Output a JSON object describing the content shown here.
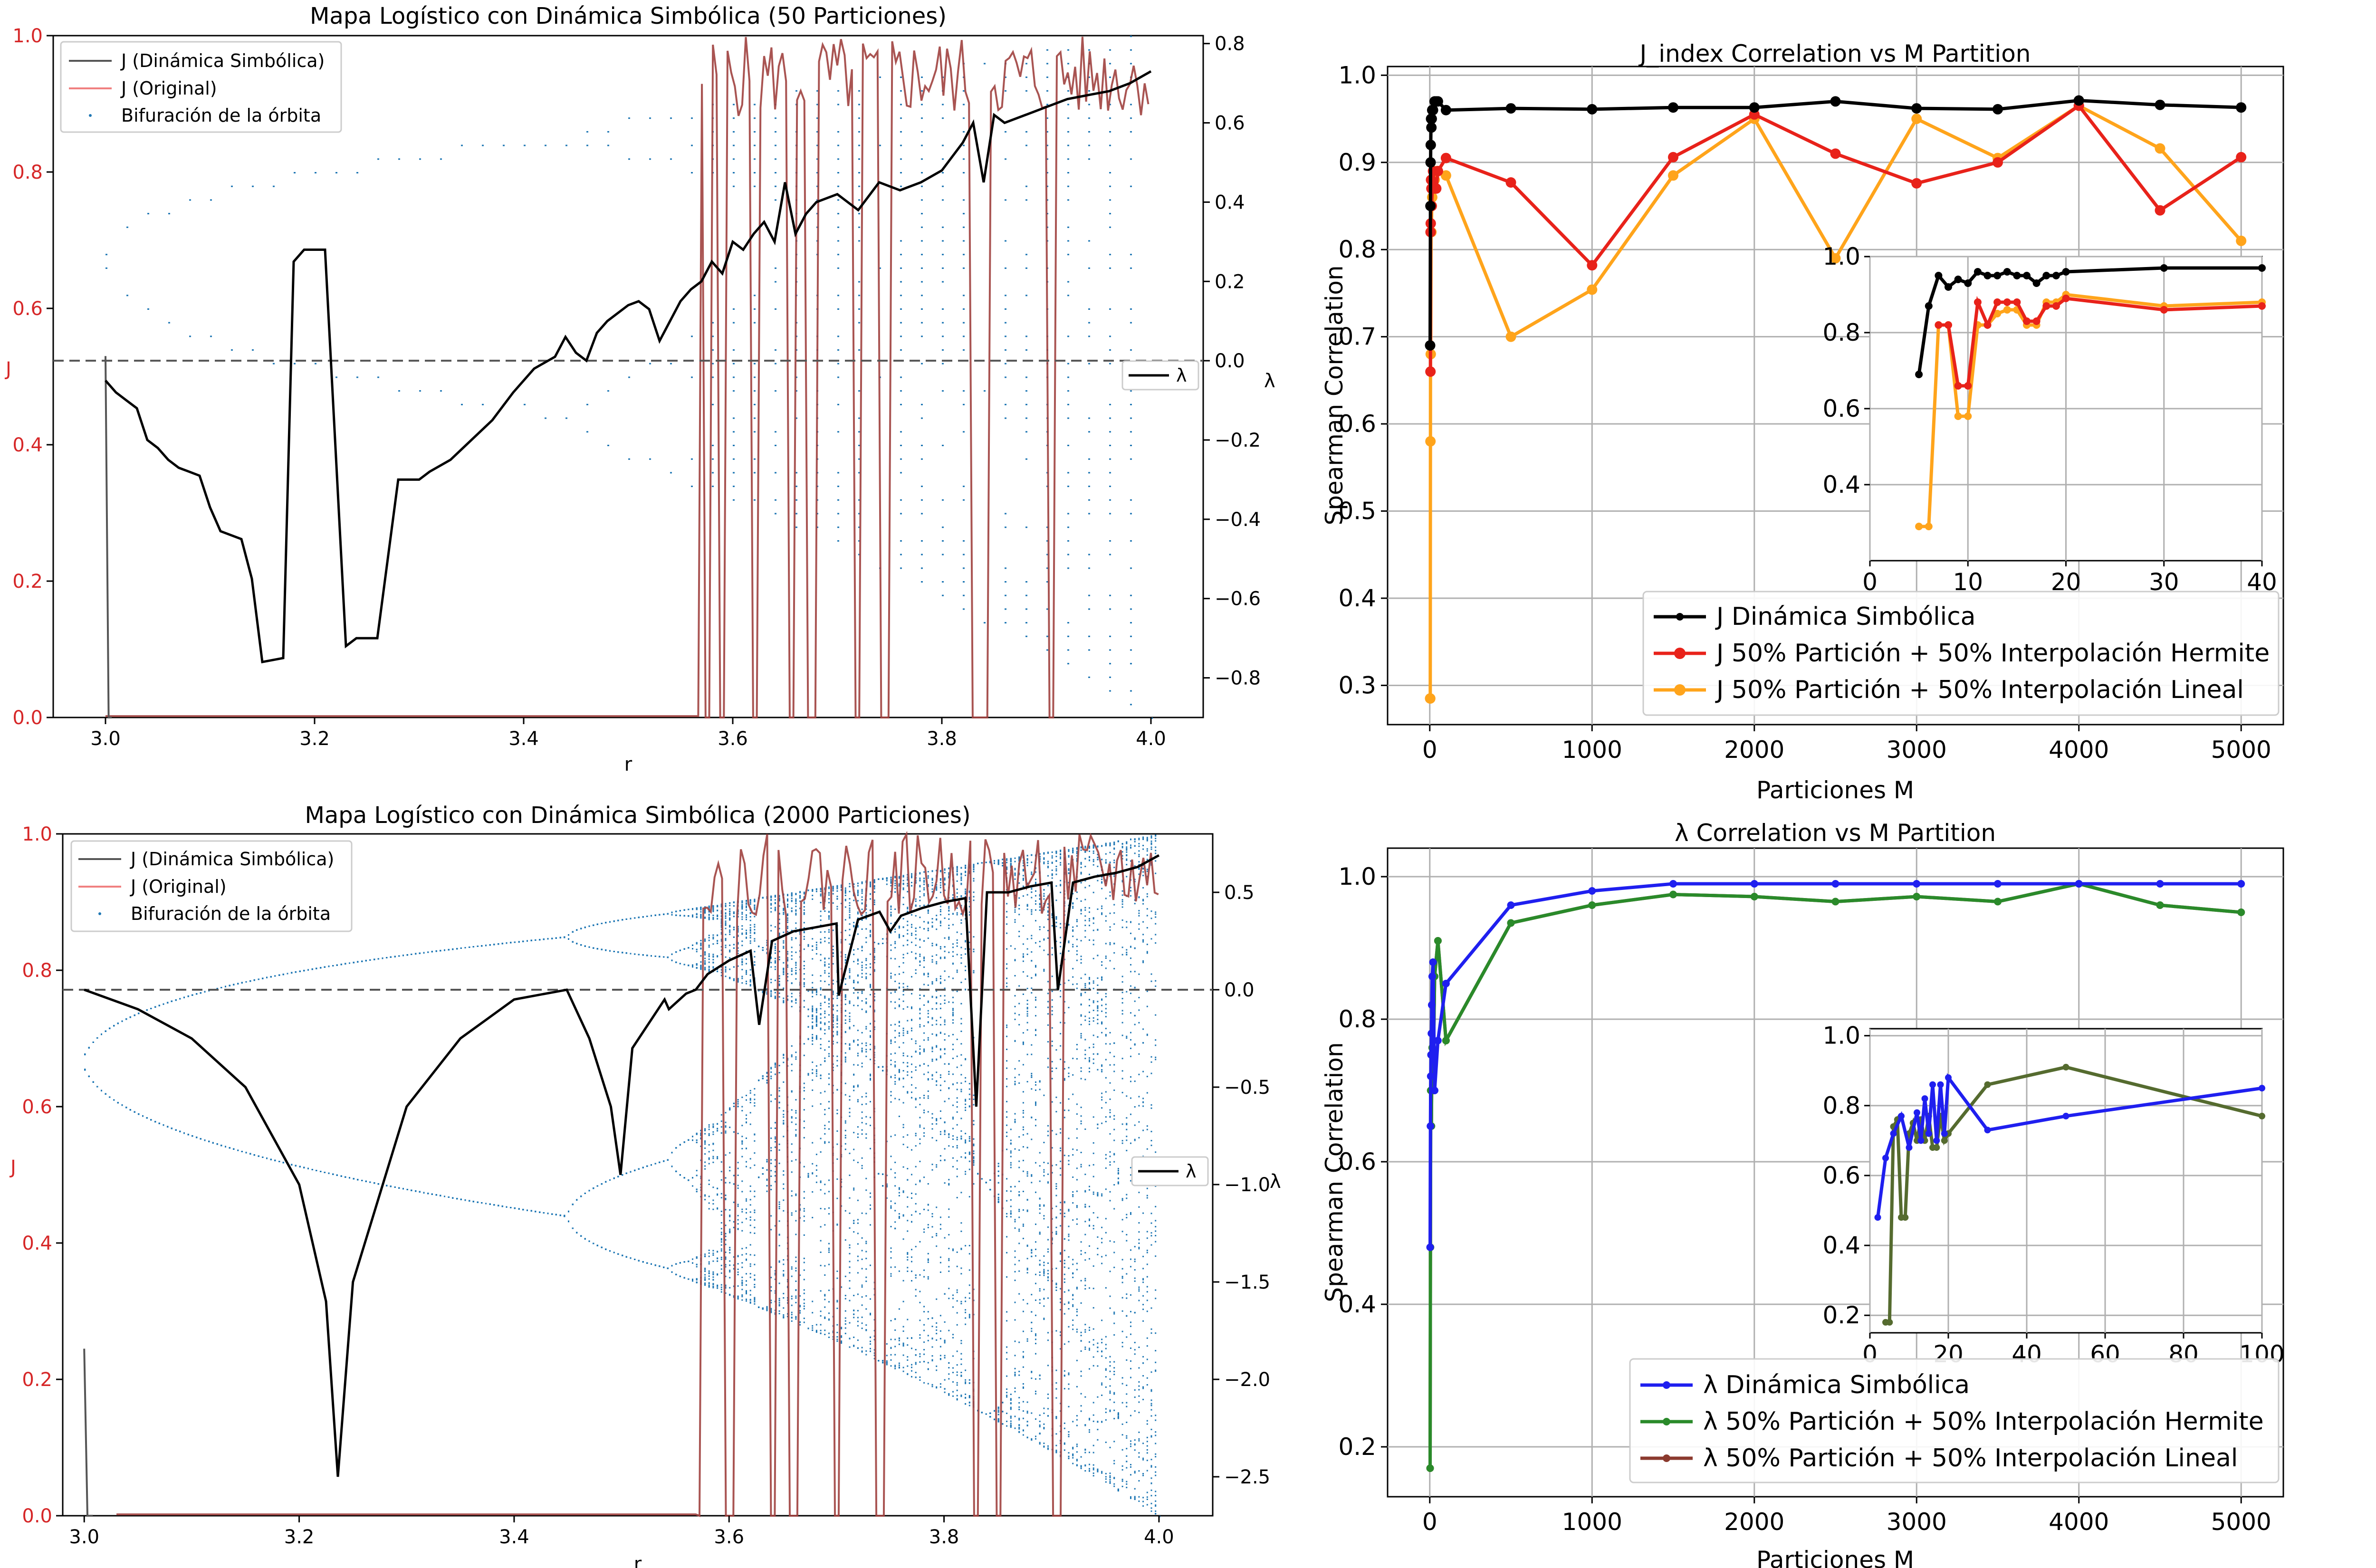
{
  "chart_data": [
    {
      "id": "p1",
      "type": "line",
      "title": "Mapa Logístico con Dinámica Simbólica (50 Particiones)",
      "xlabel": "r",
      "ylabel": "J",
      "y2label": "λ",
      "xlim": [
        2.95,
        4.05
      ],
      "ylim": [
        0,
        1.0
      ],
      "y2lim": [
        -0.9,
        0.82
      ],
      "xticks": [
        "3.0",
        "3.2",
        "3.4",
        "3.6",
        "3.8",
        "4.0"
      ],
      "yticks": [
        "0.0",
        "0.2",
        "0.4",
        "0.6",
        "0.8",
        "1.0"
      ],
      "y2ticks": [
        "−0.8",
        "−0.6",
        "−0.4",
        "−0.2",
        "0.0",
        "0.2",
        "0.4",
        "0.6",
        "0.8"
      ],
      "legend": [
        "J (Dinámica Simbólica)",
        "J (Original)",
        "Bifuración de la órbita"
      ],
      "legend2": "λ",
      "lambda_legend_pos": "center-right",
      "colors": {
        "j_symbolic": "#555555",
        "j_original": "#a0413f",
        "bifurcation": "#1f77b4",
        "lambda": "#000000",
        "zero_line": "#555555"
      },
      "j_symbolic": {
        "x": [
          3.0,
          3.003,
          3.006
        ],
        "y": [
          0.53,
          0.0,
          0.0
        ]
      },
      "lambda_series": {
        "x": [
          3.0,
          3.01,
          3.02,
          3.03,
          3.04,
          3.05,
          3.06,
          3.07,
          3.08,
          3.09,
          3.1,
          3.11,
          3.13,
          3.14,
          3.15,
          3.17,
          3.18,
          3.19,
          3.21,
          3.23,
          3.24,
          3.26,
          3.28,
          3.3,
          3.31,
          3.33,
          3.35,
          3.37,
          3.39,
          3.41,
          3.43,
          3.44,
          3.45,
          3.46,
          3.47,
          3.48,
          3.49,
          3.5,
          3.51,
          3.52,
          3.53,
          3.54,
          3.55,
          3.56,
          3.57,
          3.58,
          3.59,
          3.6,
          3.61,
          3.62,
          3.63,
          3.64,
          3.65,
          3.66,
          3.67,
          3.68,
          3.7,
          3.72,
          3.74,
          3.76,
          3.78,
          3.8,
          3.82,
          3.83,
          3.84,
          3.85,
          3.86,
          3.88,
          3.9,
          3.92,
          3.94,
          3.96,
          3.98,
          4.0
        ],
        "y": [
          -0.05,
          -0.08,
          -0.1,
          -0.12,
          -0.2,
          -0.22,
          -0.25,
          -0.27,
          -0.28,
          -0.29,
          -0.37,
          -0.43,
          -0.45,
          -0.55,
          -0.76,
          -0.75,
          0.25,
          0.28,
          0.28,
          -0.72,
          -0.7,
          -0.7,
          -0.3,
          -0.3,
          -0.28,
          -0.25,
          -0.2,
          -0.15,
          -0.08,
          -0.02,
          0.01,
          0.06,
          0.02,
          0.0,
          0.07,
          0.1,
          0.12,
          0.14,
          0.15,
          0.13,
          0.05,
          0.1,
          0.15,
          0.18,
          0.2,
          0.25,
          0.22,
          0.3,
          0.28,
          0.32,
          0.35,
          0.3,
          0.45,
          0.32,
          0.37,
          0.4,
          0.42,
          0.38,
          0.45,
          0.43,
          0.45,
          0.48,
          0.55,
          0.6,
          0.45,
          0.62,
          0.6,
          0.62,
          0.64,
          0.66,
          0.67,
          0.68,
          0.7,
          0.73
        ]
      },
      "j_original_spikes": [
        3.575,
        3.59,
        3.62,
        3.655,
        3.675,
        3.72,
        3.745,
        3.83,
        3.84,
        3.905
      ],
      "j_original_chaos_start": 3.57
    },
    {
      "id": "p2",
      "type": "line",
      "title": "Mapa Logístico con Dinámica Simbólica (2000 Particiones)",
      "xlabel": "r",
      "ylabel": "J",
      "y2label": "λ",
      "xlim": [
        2.98,
        4.05
      ],
      "ylim": [
        0,
        1.0
      ],
      "y2lim": [
        -2.7,
        0.8
      ],
      "xticks": [
        "3.0",
        "3.2",
        "3.4",
        "3.6",
        "3.8",
        "4.0"
      ],
      "yticks": [
        "0.0",
        "0.2",
        "0.4",
        "0.6",
        "0.8",
        "1.0"
      ],
      "y2ticks": [
        "−2.5",
        "−2.0",
        "−1.5",
        "−1.0",
        "−0.5",
        "0.0",
        "0.5"
      ],
      "legend": [
        "J (Dinámica Simbólica)",
        "J (Original)",
        "Bifuración de la órbita"
      ],
      "legend2": "λ",
      "lambda_legend_pos": "center-right",
      "colors": {
        "j_symbolic": "#555555",
        "j_original": "#a0413f",
        "bifurcation": "#1f77b4",
        "lambda": "#000000",
        "zero_line": "#555555"
      },
      "lambda_series": {
        "x": [
          3.0,
          3.05,
          3.1,
          3.15,
          3.2,
          3.225,
          3.236,
          3.25,
          3.3,
          3.35,
          3.4,
          3.449,
          3.47,
          3.49,
          3.499,
          3.51,
          3.54,
          3.544,
          3.56,
          3.569,
          3.58,
          3.6,
          3.62,
          3.628,
          3.64,
          3.66,
          3.68,
          3.7,
          3.702,
          3.72,
          3.74,
          3.75,
          3.76,
          3.78,
          3.8,
          3.82,
          3.83,
          3.84,
          3.86,
          3.88,
          3.9,
          3.906,
          3.92,
          3.94,
          3.96,
          3.98,
          4.0
        ],
        "y": [
          0.0,
          -0.1,
          -0.25,
          -0.5,
          -1.0,
          -1.6,
          -2.5,
          -1.5,
          -0.6,
          -0.25,
          -0.05,
          0.0,
          -0.25,
          -0.6,
          -0.95,
          -0.3,
          -0.05,
          -0.1,
          -0.02,
          0.0,
          0.08,
          0.15,
          0.2,
          -0.18,
          0.25,
          0.3,
          0.32,
          0.34,
          -0.03,
          0.36,
          0.4,
          0.3,
          0.38,
          0.42,
          0.45,
          0.47,
          -0.6,
          0.5,
          0.5,
          0.53,
          0.55,
          0.0,
          0.55,
          0.58,
          0.6,
          0.63,
          0.69
        ]
      },
      "j_original_spikes": [
        3.57,
        3.6,
        3.64,
        3.66,
        3.7,
        3.74,
        3.83,
        3.85,
        3.905
      ],
      "j_original_chaos_start": 3.57
    },
    {
      "id": "p3",
      "type": "line",
      "title": "J_index Correlation vs M Partition",
      "xlabel": "Particiones M",
      "ylabel": "Spearman Correlation",
      "xlim": [
        -260,
        5260
      ],
      "ylim": [
        0.255,
        1.01
      ],
      "xticks": [
        0,
        1000,
        2000,
        3000,
        4000,
        5000
      ],
      "yticks": [
        0.3,
        0.4,
        0.5,
        0.6,
        0.7,
        0.8,
        0.9,
        1.0
      ],
      "legend_position": "lower-right",
      "series": [
        {
          "name": "J Dinámica Simbólica",
          "color": "#000000",
          "x": [
            2,
            4,
            5,
            6,
            8,
            10,
            12,
            15,
            20,
            30,
            40,
            50,
            100,
            500,
            1000,
            1500,
            2000,
            2500,
            3000,
            3500,
            4000,
            4500,
            5000
          ],
          "y": [
            0.69,
            0.85,
            0.9,
            0.92,
            0.95,
            0.94,
            0.95,
            0.96,
            0.96,
            0.97,
            0.97,
            0.97,
            0.96,
            0.962,
            0.961,
            0.963,
            0.963,
            0.97,
            0.962,
            0.961,
            0.971,
            0.966,
            0.963
          ]
        },
        {
          "name": "J 50% Partición + 50% Interpolación Hermite",
          "color": "#e8221a",
          "x": [
            4,
            5,
            6,
            8,
            10,
            12,
            15,
            20,
            30,
            40,
            50,
            100,
            500,
            1000,
            1500,
            2000,
            2500,
            3000,
            3500,
            4000,
            4500,
            5000
          ],
          "y": [
            0.66,
            0.82,
            0.83,
            0.88,
            0.87,
            0.85,
            0.87,
            0.89,
            0.87,
            0.87,
            0.89,
            0.905,
            0.877,
            0.782,
            0.906,
            0.955,
            0.91,
            0.876,
            0.9,
            0.965,
            0.845,
            0.906
          ]
        },
        {
          "name": "J 50% Partición + 50% Interpolación Lineal",
          "color": "#ffa41b",
          "x": [
            2,
            3,
            4,
            5,
            6,
            8,
            10,
            12,
            15,
            20,
            30,
            40,
            50,
            100,
            500,
            1000,
            1500,
            2000,
            2500,
            3000,
            3500,
            4000,
            4500,
            5000
          ],
          "y": [
            0.285,
            0.285,
            0.58,
            0.82,
            0.68,
            0.82,
            0.82,
            0.85,
            0.86,
            0.88,
            0.88,
            0.89,
            0.89,
            0.885,
            0.7,
            0.754,
            0.885,
            0.95,
            0.79,
            0.95,
            0.905,
            0.965,
            0.916,
            0.81
          ]
        }
      ],
      "inset": {
        "xlim": [
          0,
          40
        ],
        "ylim": [
          0.2,
          1.0
        ],
        "xticks": [
          0,
          10,
          20,
          30,
          40
        ],
        "yticks": [
          0.4,
          0.6,
          0.8,
          1.0
        ],
        "series": [
          {
            "color": "#000000",
            "x": [
              5,
              6,
              7,
              8,
              9,
              10,
              11,
              12,
              13,
              14,
              15,
              16,
              17,
              18,
              19,
              20,
              30,
              40
            ],
            "y": [
              0.69,
              0.87,
              0.95,
              0.92,
              0.94,
              0.93,
              0.96,
              0.95,
              0.95,
              0.96,
              0.95,
              0.95,
              0.93,
              0.95,
              0.95,
              0.96,
              0.97,
              0.97
            ]
          },
          {
            "color": "#e8221a",
            "x": [
              7,
              8,
              9,
              10,
              11,
              12,
              13,
              14,
              15,
              16,
              17,
              18,
              19,
              20,
              30,
              40
            ],
            "y": [
              0.82,
              0.82,
              0.66,
              0.66,
              0.88,
              0.82,
              0.88,
              0.88,
              0.88,
              0.83,
              0.83,
              0.87,
              0.87,
              0.89,
              0.86,
              0.87
            ]
          },
          {
            "color": "#ffa41b",
            "x": [
              5,
              6,
              7,
              8,
              9,
              10,
              11,
              12,
              13,
              14,
              15,
              16,
              17,
              18,
              19,
              20,
              30,
              40
            ],
            "y": [
              0.29,
              0.29,
              0.82,
              0.82,
              0.58,
              0.58,
              0.82,
              0.82,
              0.85,
              0.86,
              0.86,
              0.82,
              0.82,
              0.88,
              0.88,
              0.9,
              0.87,
              0.88
            ]
          }
        ]
      }
    },
    {
      "id": "p4",
      "type": "line",
      "title": "λ Correlation vs M Partition",
      "xlabel": "Particiones M",
      "ylabel": "Spearman Correlation",
      "xlim": [
        -260,
        5260
      ],
      "ylim": [
        0.13,
        1.04
      ],
      "xticks": [
        0,
        1000,
        2000,
        3000,
        4000,
        5000
      ],
      "yticks": [
        0.2,
        0.4,
        0.6,
        0.8,
        1.0
      ],
      "legend_position": "lower-right",
      "series": [
        {
          "name": "λ Dinámica Simbólica",
          "color": "#1f1fef",
          "x": [
            2,
            4,
            6,
            8,
            10,
            12,
            15,
            20,
            30,
            50,
            100,
            500,
            1000,
            1500,
            2000,
            2500,
            3000,
            3500,
            4000,
            4500,
            5000
          ],
          "y": [
            0.48,
            0.65,
            0.72,
            0.75,
            0.78,
            0.82,
            0.86,
            0.88,
            0.7,
            0.77,
            0.85,
            0.96,
            0.98,
            0.99,
            0.99,
            0.99,
            0.99,
            0.99,
            0.99,
            0.99,
            0.99
          ]
        },
        {
          "name": "λ 50% Partición + 50% Interpolación Hermite",
          "color": "#2a8a2a",
          "x": [
            2,
            4,
            6,
            8,
            10,
            12,
            15,
            20,
            30,
            50,
            100,
            500,
            1000,
            1500,
            2000,
            2500,
            3000,
            3500,
            4000,
            4500,
            5000
          ],
          "y": [
            0.17,
            0.48,
            0.7,
            0.75,
            0.65,
            0.72,
            0.76,
            0.7,
            0.86,
            0.91,
            0.77,
            0.935,
            0.96,
            0.975,
            0.972,
            0.965,
            0.972,
            0.965,
            0.99,
            0.96,
            0.95
          ]
        },
        {
          "name": "λ 50% Partición + 50% Interpolación Lineal",
          "color": "#8b3a2e",
          "x": [
            2,
            4,
            6,
            8,
            10,
            12,
            15,
            20,
            30,
            50,
            100,
            500,
            1000,
            1500,
            2000,
            2500,
            3000,
            3500,
            4000,
            4500,
            5000
          ],
          "y": [
            0.17,
            0.48,
            0.7,
            0.75,
            0.65,
            0.72,
            0.76,
            0.7,
            0.86,
            0.91,
            0.77,
            0.935,
            0.96,
            0.975,
            0.972,
            0.965,
            0.972,
            0.965,
            0.99,
            0.96,
            0.95
          ]
        }
      ],
      "inset": {
        "xlim": [
          0,
          100
        ],
        "ylim": [
          0.15,
          1.02
        ],
        "xticks": [
          0,
          20,
          40,
          60,
          80,
          100
        ],
        "yticks": [
          0.2,
          0.4,
          0.6,
          0.8,
          1.0
        ],
        "series": [
          {
            "color": "#1f1fef",
            "x": [
              2,
              4,
              6,
              8,
              10,
              12,
              13,
              14,
              15,
              16,
              17,
              18,
              19,
              20,
              30,
              50,
              100
            ],
            "y": [
              0.48,
              0.65,
              0.72,
              0.77,
              0.68,
              0.78,
              0.7,
              0.82,
              0.72,
              0.86,
              0.7,
              0.86,
              0.72,
              0.88,
              0.73,
              0.77,
              0.85
            ]
          },
          {
            "color": "#556b2f",
            "x": [
              4,
              5,
              6,
              7,
              8,
              9,
              10,
              11,
              12,
              13,
              14,
              15,
              16,
              17,
              18,
              19,
              20,
              30,
              50,
              100
            ],
            "y": [
              0.18,
              0.18,
              0.74,
              0.76,
              0.48,
              0.48,
              0.72,
              0.75,
              0.7,
              0.76,
              0.7,
              0.77,
              0.68,
              0.68,
              0.77,
              0.7,
              0.72,
              0.86,
              0.91,
              0.77
            ]
          }
        ]
      }
    }
  ]
}
